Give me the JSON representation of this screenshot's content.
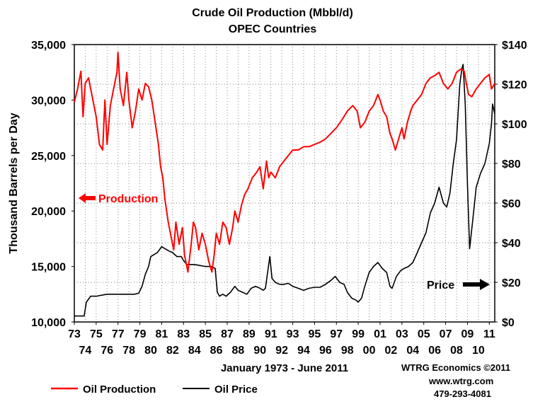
{
  "chart_data": {
    "type": "line",
    "title": "Crude Oil Production (Mbbl/d)",
    "subtitle": "OPEC Countries",
    "xlabel": "January 1973 - June 2011",
    "ylabel": "Thousand Barrels per Day",
    "x_range": [
      1973.0,
      2011.5
    ],
    "ylim_left": [
      10000,
      35000
    ],
    "ylim_right": [
      0,
      140
    ],
    "grid": true,
    "yticks_left": [
      "35,000",
      "30,000",
      "25,000",
      "20,000",
      "15,000",
      "10,000"
    ],
    "yticks_left_values": [
      35000,
      30000,
      25000,
      20000,
      15000,
      10000
    ],
    "yticks_right": [
      "$140",
      "$120",
      "$100",
      "$80",
      "$60",
      "$40",
      "$20",
      "$0"
    ],
    "yticks_right_values": [
      140,
      120,
      100,
      80,
      60,
      40,
      20,
      0
    ],
    "xticks_top": [
      "73",
      "75",
      "77",
      "79",
      "81",
      "83",
      "85",
      "87",
      "89",
      "91",
      "93",
      "95",
      "97",
      "99",
      "01",
      "03",
      "05",
      "07",
      "09",
      "11"
    ],
    "xticks_top_values": [
      1973,
      1975,
      1977,
      1979,
      1981,
      1983,
      1985,
      1987,
      1989,
      1991,
      1993,
      1995,
      1997,
      1999,
      2001,
      2003,
      2005,
      2007,
      2009,
      2011
    ],
    "xticks_bottom": [
      "74",
      "76",
      "78",
      "80",
      "82",
      "84",
      "86",
      "88",
      "90",
      "92",
      "94",
      "96",
      "98",
      "00",
      "02",
      "04",
      "06",
      "08",
      "10"
    ],
    "xticks_bottom_values": [
      1974,
      1976,
      1978,
      1980,
      1982,
      1984,
      1986,
      1988,
      1990,
      1992,
      1994,
      1996,
      1998,
      2000,
      2002,
      2004,
      2006,
      2008,
      2010
    ],
    "legend": [
      "Oil Production",
      "Oil Price"
    ],
    "annotations": {
      "production": "Production",
      "price": "Price"
    },
    "series": [
      {
        "name": "Oil Production",
        "axis": "left",
        "color": "#ff0000",
        "x": [
          1973.0,
          1973.3,
          1973.6,
          1973.8,
          1974.0,
          1974.3,
          1974.6,
          1975.0,
          1975.3,
          1975.6,
          1975.8,
          1976.0,
          1976.3,
          1976.6,
          1976.9,
          1977.0,
          1977.2,
          1977.5,
          1977.8,
          1978.0,
          1978.3,
          1978.6,
          1978.9,
          1979.2,
          1979.5,
          1979.8,
          1980.1,
          1980.4,
          1980.7,
          1980.9,
          1981.1,
          1981.3,
          1981.6,
          1981.9,
          1982.1,
          1982.3,
          1982.6,
          1982.9,
          1983.1,
          1983.4,
          1983.7,
          1983.9,
          1984.1,
          1984.4,
          1984.7,
          1985.0,
          1985.3,
          1985.6,
          1985.8,
          1986.0,
          1986.3,
          1986.6,
          1986.9,
          1987.2,
          1987.5,
          1987.7,
          1988.0,
          1988.3,
          1988.6,
          1988.9,
          1989.3,
          1989.7,
          1990.0,
          1990.3,
          1990.6,
          1990.8,
          1991.0,
          1991.4,
          1991.8,
          1992.2,
          1992.6,
          1993.0,
          1993.5,
          1994.0,
          1994.5,
          1995.0,
          1995.5,
          1996.0,
          1996.5,
          1997.0,
          1997.5,
          1998.0,
          1998.5,
          1998.9,
          1999.2,
          1999.6,
          2000.0,
          2000.4,
          2000.8,
          2001.0,
          2001.3,
          2001.6,
          2001.9,
          2002.1,
          2002.4,
          2002.7,
          2003.0,
          2003.2,
          2003.5,
          2003.8,
          2004.0,
          2004.4,
          2004.8,
          2005.2,
          2005.6,
          2006.0,
          2006.4,
          2006.8,
          2007.2,
          2007.6,
          2008.0,
          2008.4,
          2008.7,
          2008.9,
          2009.1,
          2009.4,
          2009.8,
          2010.2,
          2010.6,
          2011.0,
          2011.2,
          2011.5
        ],
        "values": [
          29800,
          31000,
          32600,
          28500,
          31500,
          32000,
          30500,
          28500,
          26000,
          25500,
          30000,
          26000,
          29500,
          31000,
          32500,
          34300,
          31000,
          29500,
          32500,
          30000,
          27500,
          29000,
          31000,
          30000,
          31500,
          31200,
          30000,
          28000,
          26000,
          24000,
          23000,
          21000,
          19000,
          17500,
          16500,
          19000,
          17000,
          18500,
          16000,
          14500,
          17000,
          19000,
          18500,
          16500,
          18000,
          17000,
          15500,
          14500,
          16000,
          18000,
          17000,
          19000,
          18500,
          17000,
          18500,
          20000,
          19000,
          20500,
          21500,
          22000,
          23000,
          23500,
          24000,
          22000,
          24500,
          23000,
          23500,
          23000,
          24000,
          24500,
          25000,
          25500,
          25500,
          25800,
          25800,
          26000,
          26200,
          26500,
          27000,
          27500,
          28200,
          29000,
          29500,
          29000,
          27500,
          28000,
          29000,
          29500,
          30500,
          30000,
          29000,
          28500,
          27000,
          26500,
          25500,
          26500,
          27500,
          26500,
          28000,
          29000,
          29500,
          30000,
          30500,
          31500,
          32000,
          32200,
          32500,
          31500,
          31000,
          31500,
          32500,
          32800,
          32600,
          31500,
          30500,
          30300,
          31000,
          31500,
          32000,
          32300,
          31000,
          31500
        ]
      },
      {
        "name": "Oil Price",
        "axis": "right",
        "color": "#000000",
        "x": [
          1973.0,
          1973.7,
          1973.9,
          1974.1,
          1974.5,
          1975.0,
          1975.5,
          1976.0,
          1976.5,
          1977.0,
          1977.5,
          1978.0,
          1978.5,
          1978.9,
          1979.2,
          1979.5,
          1979.8,
          1980.0,
          1980.3,
          1980.6,
          1981.0,
          1981.3,
          1981.6,
          1982.0,
          1982.4,
          1982.8,
          1983.0,
          1983.3,
          1983.7,
          1984.0,
          1984.5,
          1985.0,
          1985.5,
          1985.9,
          1986.1,
          1986.3,
          1986.6,
          1986.9,
          1987.3,
          1987.7,
          1988.0,
          1988.4,
          1988.8,
          1989.2,
          1989.6,
          1990.0,
          1990.3,
          1990.5,
          1990.7,
          1990.9,
          1991.1,
          1991.4,
          1991.8,
          1992.2,
          1992.6,
          1993.0,
          1993.5,
          1994.0,
          1994.5,
          1995.0,
          1995.5,
          1996.0,
          1996.5,
          1996.9,
          1997.3,
          1997.7,
          1998.0,
          1998.4,
          1998.8,
          1999.0,
          1999.3,
          1999.6,
          2000.0,
          2000.4,
          2000.8,
          2001.2,
          2001.6,
          2001.9,
          2002.1,
          2002.5,
          2002.9,
          2003.2,
          2003.6,
          2004.0,
          2004.4,
          2004.8,
          2005.2,
          2005.6,
          2006.0,
          2006.4,
          2006.8,
          2007.1,
          2007.4,
          2007.7,
          2008.0,
          2008.3,
          2008.5,
          2008.6,
          2008.8,
          2009.0,
          2009.2,
          2009.5,
          2009.8,
          2010.2,
          2010.6,
          2011.0,
          2011.2,
          2011.3,
          2011.5
        ],
        "values": [
          3,
          3,
          3,
          10,
          13,
          13,
          13.5,
          14,
          14,
          14,
          14,
          14,
          14,
          14.5,
          18,
          24,
          28,
          33,
          34,
          35,
          38,
          37,
          36,
          35,
          33,
          33,
          31,
          29,
          29,
          29,
          28.5,
          28,
          28,
          27,
          15,
          13,
          14,
          13,
          15,
          18,
          16,
          15,
          14,
          17,
          18,
          17,
          16,
          17,
          25,
          33,
          22,
          20,
          19,
          19,
          19.5,
          18,
          17,
          16,
          17,
          17.5,
          17.5,
          19,
          21,
          23,
          20,
          19,
          15,
          12,
          11,
          10,
          12,
          18,
          25,
          28,
          30,
          27,
          25,
          18,
          17,
          23,
          26,
          27,
          28,
          30,
          35,
          40,
          45,
          55,
          60,
          68,
          60,
          58,
          65,
          80,
          92,
          120,
          128,
          130,
          110,
          70,
          37,
          52,
          68,
          75,
          80,
          90,
          100,
          110,
          105
        ]
      }
    ]
  },
  "credits": {
    "source": "WTRG Economics  ©2011",
    "website": "www.wtrg.com",
    "phone": "479-293-4081"
  }
}
